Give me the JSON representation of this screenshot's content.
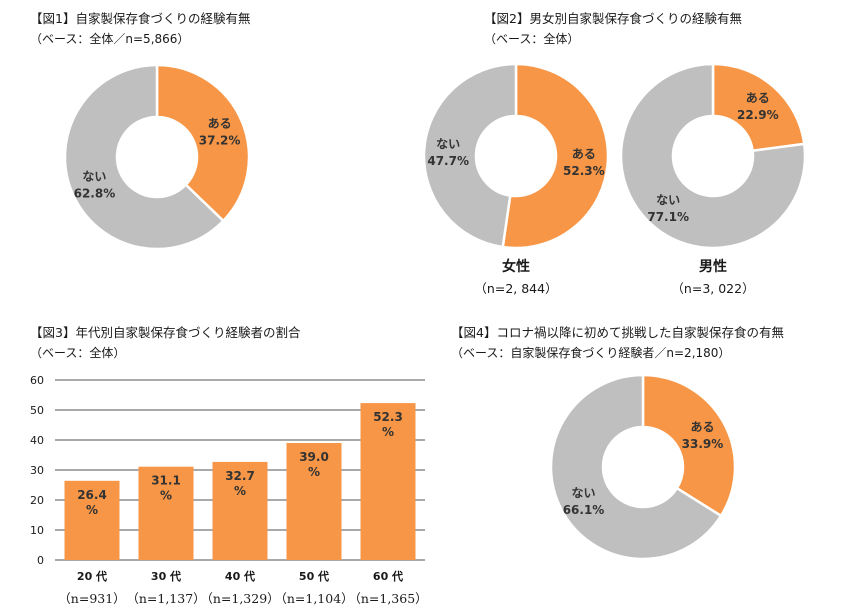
{
  "colors": {
    "orange": "#F79646",
    "gray": "#BFBFBF",
    "stroke": "#ffffff"
  },
  "fig1": {
    "title": "【図1】自家製保存食づくりの経験有無",
    "subtitle": "（ベース：全体／n=5,866）"
  },
  "fig2": {
    "title": "【図2】男女別自家製保存食づくりの経験有無",
    "subtitle": "（ベース：全体）",
    "female_label": "女性",
    "female_n": "（n=2, 844）",
    "male_label": "男性",
    "male_n": "（n=3, 022）"
  },
  "fig3": {
    "title": "【図3】年代別自家製保存食づくり経験者の割合",
    "subtitle": "（ベース：全体）"
  },
  "fig4": {
    "title": "【図4】コロナ禍以降に初めて挑戦した自家製保存食の有無",
    "subtitle": "（ベース：自家製保存食づくり経験者／n=2,180）"
  },
  "chart_data": [
    {
      "id": "fig1",
      "type": "pie",
      "title": "【図1】自家製保存食づくりの経験有無",
      "slices": [
        {
          "name": "ある",
          "value": 37.2,
          "label": "37.2%",
          "color": "#F79646"
        },
        {
          "name": "ない",
          "value": 62.8,
          "label": "62.8%",
          "color": "#BFBFBF"
        }
      ]
    },
    {
      "id": "fig2-female",
      "type": "pie",
      "title": "女性",
      "slices": [
        {
          "name": "ある",
          "value": 52.3,
          "label": "52.3%",
          "color": "#F79646"
        },
        {
          "name": "ない",
          "value": 47.7,
          "label": "47.7%",
          "color": "#BFBFBF"
        }
      ]
    },
    {
      "id": "fig2-male",
      "type": "pie",
      "title": "男性",
      "slices": [
        {
          "name": "ある",
          "value": 22.9,
          "label": "22.9%",
          "color": "#F79646"
        },
        {
          "name": "ない",
          "value": 77.1,
          "label": "77.1%",
          "color": "#BFBFBF"
        }
      ]
    },
    {
      "id": "fig3",
      "type": "bar",
      "title": "【図3】年代別自家製保存食づくり経験者の割合",
      "categories": [
        "20 代",
        "30 代",
        "40 代",
        "50 代",
        "60 代"
      ],
      "n_labels": [
        "（n=931）",
        "（n=1,137）",
        "（n=1,329）",
        "（n=1,104）",
        "（n=1,365）"
      ],
      "values": [
        26.4,
        31.1,
        32.7,
        39.0,
        52.3
      ],
      "value_labels": [
        "26.4",
        "31.1",
        "32.7",
        "39.0",
        "52.3"
      ],
      "unit": "%",
      "ylim": [
        0,
        60
      ],
      "yticks": [
        "0",
        "10",
        "20",
        "30",
        "40",
        "50",
        "60"
      ],
      "grid": true
    },
    {
      "id": "fig4",
      "type": "pie",
      "title": "【図4】コロナ禍以降に初めて挑戦した自家製保存食の有無",
      "slices": [
        {
          "name": "ある",
          "value": 33.9,
          "label": "33.9%",
          "color": "#F79646"
        },
        {
          "name": "ない",
          "value": 66.1,
          "label": "66.1%",
          "color": "#BFBFBF"
        }
      ]
    }
  ]
}
